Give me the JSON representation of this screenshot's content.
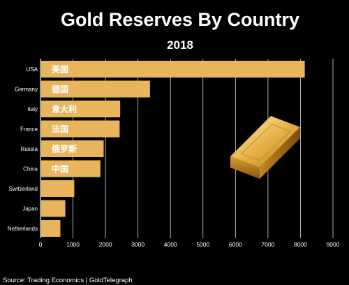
{
  "chart_data": {
    "type": "bar",
    "orientation": "horizontal",
    "title": "Gold Reserves By Country",
    "subtitle": "2018",
    "categories": [
      "USA",
      "Germany",
      "Italy",
      "France",
      "Russia",
      "China",
      "Switzerland",
      "Japan",
      "Netherlands"
    ],
    "bar_labels": [
      "美国",
      "德国",
      "意大利",
      "法国",
      "俄罗斯",
      "中国",
      "",
      "",
      ""
    ],
    "values": [
      8133,
      3370,
      2452,
      2436,
      1944,
      1843,
      1040,
      765,
      612
    ],
    "xlim": [
      0,
      9000
    ],
    "xticks": [
      0,
      1000,
      2000,
      3000,
      4000,
      5000,
      6000,
      7000,
      8000,
      9000
    ],
    "grid": true,
    "bar_color": "#e8b55c",
    "background_color": "#000000"
  },
  "source": "Source: Trading Economics | GoldTelegraph"
}
